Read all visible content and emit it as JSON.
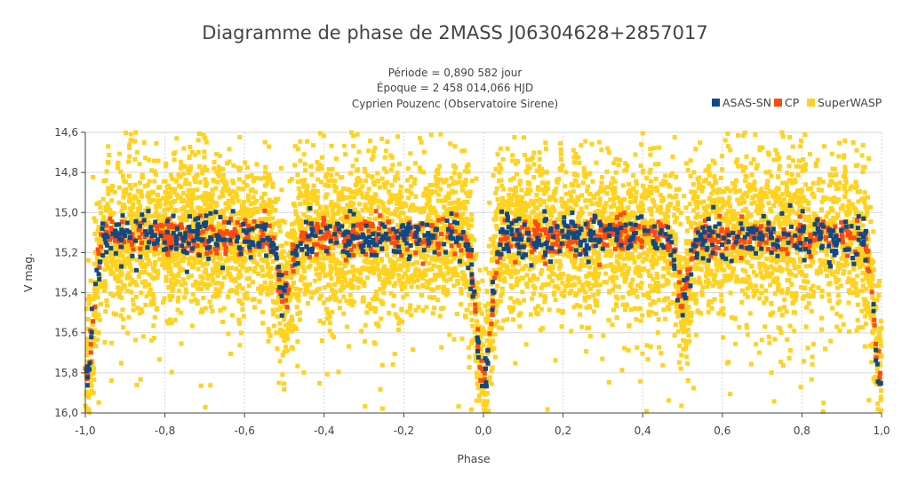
{
  "chart_data": {
    "type": "scatter",
    "title": "Diagramme de phase de 2MASS J06304628+2857017",
    "subtitle_lines": [
      "Période = 0,890 582 jour",
      "Époque = 2 458 014,066 HJD",
      "Cyprien Pouzenc (Observatoire Sirene)"
    ],
    "xlabel": "Phase",
    "ylabel": "V mag.",
    "xlim": [
      -1.0,
      1.0
    ],
    "ylim": [
      14.6,
      16.0
    ],
    "y_reversed": true,
    "x_ticks": [
      "-1,0",
      "-0,8",
      "-0,6",
      "-0,4",
      "-0,2",
      "0,0",
      "0,2",
      "0,4",
      "0,6",
      "0,8",
      "1,0"
    ],
    "y_ticks": [
      "14,6",
      "14,8",
      "15,0",
      "15,2",
      "15,4",
      "15,6",
      "15,8",
      "16,0"
    ],
    "grid": true,
    "legend_position": "top-right",
    "light_curve_model": {
      "baseline_mag": 15.12,
      "primary_minimum": {
        "phase": 0.0,
        "depth": 0.72,
        "width": 0.018
      },
      "secondary_minimum": {
        "phase": 0.5,
        "depth": 0.3,
        "width": 0.016
      }
    },
    "series": [
      {
        "name": "ASAS-SN",
        "color": "#0d4a87",
        "point_count": 700,
        "scatter_mag": 0.055
      },
      {
        "name": "CP",
        "color": "#ff4a12",
        "point_count": 900,
        "scatter_mag": 0.045
      },
      {
        "name": "SuperWASP",
        "color": "#ffd21f",
        "point_count": 6500,
        "scatter_mag": 0.2
      }
    ]
  }
}
